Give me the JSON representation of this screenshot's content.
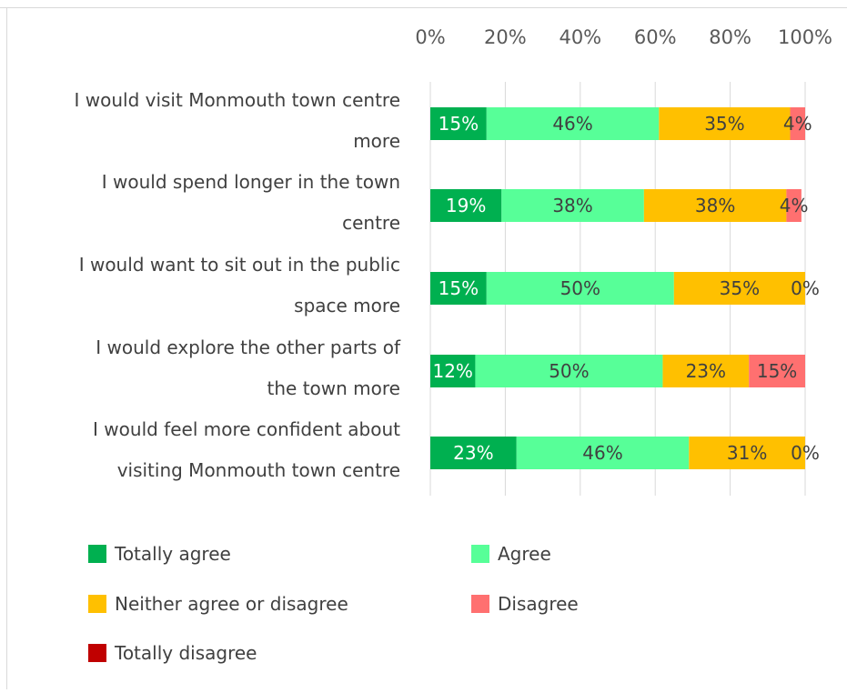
{
  "chart_data": {
    "type": "bar",
    "orientation": "horizontal",
    "stacked": "percent",
    "categories": [
      "I would visit Monmouth town centre more",
      "I would spend longer in the town centre",
      "I would want to sit out in the public space more",
      "I would explore the other parts of the town more",
      "I would feel more confident about visiting Monmouth town centre"
    ],
    "category_lines": [
      [
        "I would visit Monmouth town centre",
        "more"
      ],
      [
        "I would spend longer in the town",
        "centre"
      ],
      [
        "I would want to sit out in the public",
        "space more"
      ],
      [
        "I would explore the other parts of",
        "the town more"
      ],
      [
        "I would feel more confident about",
        "visiting Monmouth town centre"
      ]
    ],
    "series": [
      {
        "name": "Totally agree",
        "color": "#00b050",
        "values": [
          15,
          19,
          15,
          12,
          23
        ],
        "labels": [
          "15%",
          "19%",
          "15%",
          "12%",
          "23%"
        ]
      },
      {
        "name": "Agree",
        "color": "#57ff98",
        "values": [
          46,
          38,
          50,
          50,
          46
        ],
        "labels": [
          "46%",
          "38%",
          "50%",
          "50%",
          "46%"
        ]
      },
      {
        "name": "Neither agree or disagree",
        "color": "#ffc000",
        "values": [
          35,
          38,
          35,
          23,
          31
        ],
        "labels": [
          "35%",
          "38%",
          "35%",
          "23%",
          "31%"
        ]
      },
      {
        "name": "Disagree",
        "color": "#ff7070",
        "values": [
          4,
          4,
          0,
          15,
          0
        ],
        "labels": [
          "4%",
          "4%",
          "0%",
          "15%",
          "0%"
        ]
      },
      {
        "name": "Totally disagree",
        "color": "#c00000",
        "values": [
          0,
          0,
          0,
          0,
          0
        ],
        "labels": [
          "",
          "",
          "",
          "",
          ""
        ]
      }
    ],
    "x_ticks": [
      "0%",
      "20%",
      "40%",
      "60%",
      "80%",
      "100%"
    ],
    "xlim": [
      0,
      100
    ],
    "x_axis_position": "top",
    "grid": true,
    "legend_position": "bottom",
    "title": "",
    "xlabel": "",
    "ylabel": ""
  }
}
